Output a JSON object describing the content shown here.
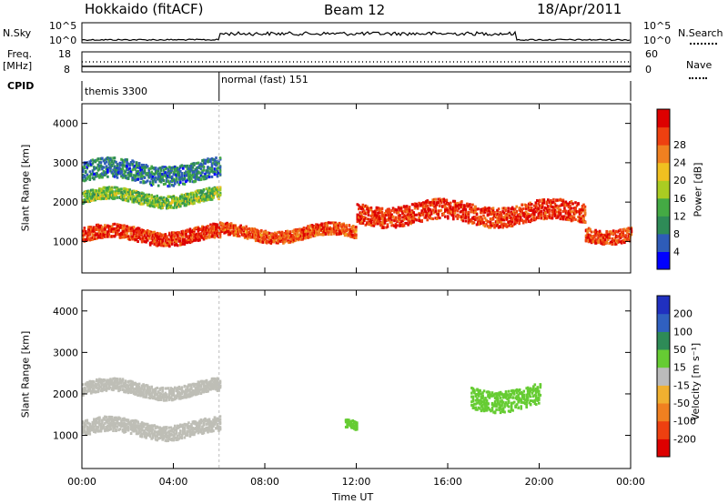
{
  "header": {
    "station": "Hokkaido (fitACF)",
    "beam": "Beam 12",
    "date": "18/Apr/2011"
  },
  "top_panels": {
    "nsky_label": "N.Sky",
    "nsky_ticks": [
      "10^5",
      "10^0"
    ],
    "nsearch_label": "N.Search",
    "nsearch_ticks": [
      "10^5",
      "10^0"
    ],
    "freq_label_1": "Freq.",
    "freq_label_2": "[MHz]",
    "freq_ticks": [
      "18",
      "8"
    ],
    "nave_label": "Nave",
    "nave_ticks": [
      "60",
      "0"
    ],
    "cpid_label": "CPID",
    "cpid_modes": [
      {
        "name": "themis 3300",
        "start_hour": 0,
        "end_hour": 6
      },
      {
        "name": "normal (fast) 151",
        "start_hour": 6,
        "end_hour": 24
      }
    ]
  },
  "chart_data": [
    {
      "type": "heatmap",
      "title": "",
      "xlabel": "Time UT",
      "ylabel": "Slant Range [km]",
      "xlim": [
        0,
        24
      ],
      "ylim": [
        200,
        4500
      ],
      "x_tick_labels": [
        "00:00",
        "04:00",
        "08:00",
        "12:00",
        "16:00",
        "20:00",
        "00:00"
      ],
      "y_tick_labels": [
        "1000",
        "2000",
        "3000",
        "4000"
      ],
      "colorbar": {
        "label": "Power [dB]",
        "ticks": [
          "4",
          "8",
          "12",
          "16",
          "20",
          "24",
          "28"
        ],
        "colors": [
          "#0000ff",
          "#2e5cb8",
          "#2e8b57",
          "#44aa44",
          "#aacc22",
          "#f0c020",
          "#f08020",
          "#ee4010",
          "#dd0000"
        ]
      },
      "bands": [
        {
          "from_hour": 0,
          "to_hour": 6,
          "center_range": 1150,
          "width": 350,
          "value": 28
        },
        {
          "from_hour": 0,
          "to_hour": 6,
          "center_range": 2100,
          "width": 300,
          "value": 14
        },
        {
          "from_hour": 0,
          "to_hour": 6,
          "center_range": 2750,
          "width": 500,
          "value": 8
        },
        {
          "from_hour": 6,
          "to_hour": 12,
          "center_range": 1200,
          "width": 300,
          "value": 26
        },
        {
          "from_hour": 12,
          "to_hour": 22,
          "center_range": 1700,
          "width": 500,
          "value": 28
        },
        {
          "from_hour": 22,
          "to_hour": 24,
          "center_range": 1200,
          "width": 350,
          "value": 27
        }
      ]
    },
    {
      "type": "heatmap",
      "title": "",
      "xlabel": "Time UT",
      "ylabel": "Slant Range [km]",
      "xlim": [
        0,
        24
      ],
      "ylim": [
        200,
        4500
      ],
      "x_tick_labels": [
        "00:00",
        "04:00",
        "08:00",
        "12:00",
        "16:00",
        "20:00",
        "00:00"
      ],
      "y_tick_labels": [
        "1000",
        "2000",
        "3000",
        "4000"
      ],
      "colorbar": {
        "label": "Velocity [m s⁻¹]",
        "ticks": [
          "200",
          "100",
          "50",
          "15",
          "-15",
          "-50",
          "-100",
          "-200"
        ],
        "colors": [
          "#2030c0",
          "#3060c0",
          "#2e8b57",
          "#66cc33",
          "#bbbbbb",
          "#f0b030",
          "#f08020",
          "#ee4010",
          "#dd0000"
        ]
      },
      "ground_scatter_color": "#bebeb6",
      "bands": [
        {
          "from_hour": 0,
          "to_hour": 6,
          "center_range": 1150,
          "width": 350,
          "value": 0
        },
        {
          "from_hour": 0,
          "to_hour": 6,
          "center_range": 2100,
          "width": 300,
          "value": 0
        },
        {
          "from_hour": 11.5,
          "to_hour": 12,
          "center_range": 1200,
          "width": 200,
          "value": 30
        },
        {
          "from_hour": 17,
          "to_hour": 20,
          "center_range": 1900,
          "width": 500,
          "value": 30
        }
      ]
    }
  ]
}
